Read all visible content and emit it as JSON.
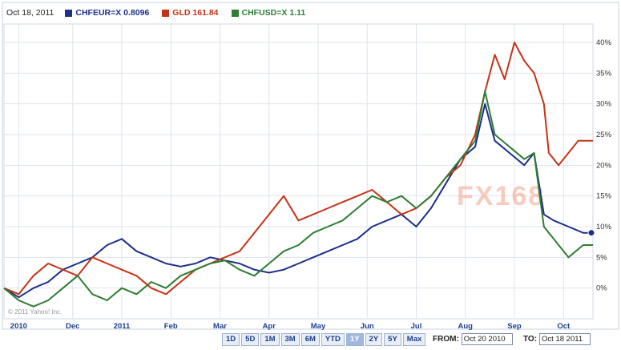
{
  "legend": {
    "date": "Oct 18, 2011",
    "items": [
      {
        "label": "CHFEUR=X",
        "value": "0.8096",
        "color": "#1c2f8a"
      },
      {
        "label": "GLD",
        "value": "161.84",
        "color": "#c63218"
      },
      {
        "label": "CHFUSD=X",
        "value": "1.11",
        "color": "#2e7d32"
      }
    ]
  },
  "watermark": {
    "text": "FX168",
    "copyright": "© 2011 Yahoo! Inc."
  },
  "range_buttons": [
    {
      "label": "1D",
      "active": false
    },
    {
      "label": "5D",
      "active": false
    },
    {
      "label": "1M",
      "active": false
    },
    {
      "label": "3M",
      "active": false
    },
    {
      "label": "6M",
      "active": false
    },
    {
      "label": "YTD",
      "active": false
    },
    {
      "label": "1Y",
      "active": true
    },
    {
      "label": "2Y",
      "active": false
    },
    {
      "label": "5Y",
      "active": false
    },
    {
      "label": "Max",
      "active": false
    }
  ],
  "from": {
    "label": "FROM:",
    "value": "Oct 20 2010"
  },
  "to": {
    "label": "TO:",
    "value": "Oct 18 2011"
  },
  "chart_data": {
    "type": "line",
    "x_tick_labels": [
      "2010",
      "Dec",
      "2011",
      "Feb",
      "Mar",
      "Apr",
      "May",
      "Jun",
      "Jul",
      "Aug",
      "Sep",
      "Oct"
    ],
    "x_tick_months": [
      0.3,
      1.4,
      2.4,
      3.4,
      4.4,
      5.4,
      6.4,
      7.4,
      8.4,
      9.4,
      10.4,
      11.4
    ],
    "x_range_months": [
      0,
      12
    ],
    "y_tick_labels": [
      "0%",
      "5%",
      "10%",
      "15%",
      "20%",
      "25%",
      "30%",
      "35%",
      "40%"
    ],
    "y_ticks": [
      0,
      5,
      10,
      15,
      20,
      25,
      30,
      35,
      40
    ],
    "ylim": [
      -5,
      43
    ],
    "y_axis_side": "right",
    "grid": true,
    "series": [
      {
        "name": "CHFEUR=X",
        "color": "#1c2f8a",
        "points": [
          [
            0,
            0
          ],
          [
            0.3,
            -1.5
          ],
          [
            0.6,
            0
          ],
          [
            0.9,
            1
          ],
          [
            1.2,
            3
          ],
          [
            1.5,
            4
          ],
          [
            1.8,
            5
          ],
          [
            2.1,
            7
          ],
          [
            2.4,
            8
          ],
          [
            2.7,
            6
          ],
          [
            3.0,
            5
          ],
          [
            3.3,
            4
          ],
          [
            3.6,
            3.5
          ],
          [
            3.9,
            4
          ],
          [
            4.2,
            5
          ],
          [
            4.5,
            4.5
          ],
          [
            4.8,
            4
          ],
          [
            5.1,
            3
          ],
          [
            5.4,
            2.5
          ],
          [
            5.7,
            3
          ],
          [
            6.0,
            4
          ],
          [
            6.3,
            5
          ],
          [
            6.6,
            6
          ],
          [
            6.9,
            7
          ],
          [
            7.2,
            8
          ],
          [
            7.5,
            10
          ],
          [
            7.8,
            11
          ],
          [
            8.1,
            12
          ],
          [
            8.4,
            10
          ],
          [
            8.7,
            13
          ],
          [
            9.0,
            17
          ],
          [
            9.3,
            21
          ],
          [
            9.6,
            23
          ],
          [
            9.8,
            30
          ],
          [
            10.0,
            24
          ],
          [
            10.3,
            22
          ],
          [
            10.6,
            20
          ],
          [
            10.8,
            22
          ],
          [
            11.0,
            12
          ],
          [
            11.2,
            11
          ],
          [
            11.5,
            10
          ],
          [
            11.8,
            9
          ],
          [
            12.0,
            9
          ]
        ]
      },
      {
        "name": "GLD",
        "color": "#c63218",
        "points": [
          [
            0,
            0
          ],
          [
            0.3,
            -1
          ],
          [
            0.6,
            2
          ],
          [
            0.9,
            4
          ],
          [
            1.2,
            3
          ],
          [
            1.5,
            2
          ],
          [
            1.8,
            5
          ],
          [
            2.1,
            4
          ],
          [
            2.4,
            3
          ],
          [
            2.7,
            2
          ],
          [
            3.0,
            0
          ],
          [
            3.3,
            -1
          ],
          [
            3.6,
            1
          ],
          [
            3.9,
            3
          ],
          [
            4.2,
            4
          ],
          [
            4.5,
            5
          ],
          [
            4.8,
            6
          ],
          [
            5.1,
            9
          ],
          [
            5.4,
            12
          ],
          [
            5.7,
            15
          ],
          [
            6.0,
            11
          ],
          [
            6.3,
            12
          ],
          [
            6.6,
            13
          ],
          [
            6.9,
            14
          ],
          [
            7.2,
            15
          ],
          [
            7.5,
            16
          ],
          [
            7.8,
            14
          ],
          [
            8.1,
            12
          ],
          [
            8.4,
            13
          ],
          [
            8.7,
            15
          ],
          [
            9.0,
            18
          ],
          [
            9.3,
            20
          ],
          [
            9.6,
            25
          ],
          [
            9.8,
            32
          ],
          [
            10.0,
            38
          ],
          [
            10.2,
            34
          ],
          [
            10.4,
            40
          ],
          [
            10.6,
            37
          ],
          [
            10.8,
            35
          ],
          [
            11.0,
            30
          ],
          [
            11.1,
            22
          ],
          [
            11.3,
            20
          ],
          [
            11.5,
            22
          ],
          [
            11.7,
            24
          ],
          [
            12.0,
            24
          ]
        ]
      },
      {
        "name": "CHFUSD=X",
        "color": "#2e7d32",
        "points": [
          [
            0,
            0
          ],
          [
            0.3,
            -2
          ],
          [
            0.6,
            -3
          ],
          [
            0.9,
            -2
          ],
          [
            1.2,
            0
          ],
          [
            1.5,
            2
          ],
          [
            1.8,
            -1
          ],
          [
            2.1,
            -2
          ],
          [
            2.4,
            0
          ],
          [
            2.7,
            -1
          ],
          [
            3.0,
            1
          ],
          [
            3.3,
            0
          ],
          [
            3.6,
            2
          ],
          [
            3.9,
            3
          ],
          [
            4.2,
            4
          ],
          [
            4.5,
            4.5
          ],
          [
            4.8,
            3
          ],
          [
            5.1,
            2
          ],
          [
            5.4,
            4
          ],
          [
            5.7,
            6
          ],
          [
            6.0,
            7
          ],
          [
            6.3,
            9
          ],
          [
            6.6,
            10
          ],
          [
            6.9,
            11
          ],
          [
            7.2,
            13
          ],
          [
            7.5,
            15
          ],
          [
            7.8,
            14
          ],
          [
            8.1,
            15
          ],
          [
            8.4,
            13
          ],
          [
            8.7,
            15
          ],
          [
            9.0,
            18
          ],
          [
            9.3,
            21
          ],
          [
            9.6,
            24
          ],
          [
            9.8,
            32
          ],
          [
            10.0,
            25
          ],
          [
            10.3,
            23
          ],
          [
            10.6,
            21
          ],
          [
            10.8,
            22
          ],
          [
            11.0,
            10
          ],
          [
            11.2,
            8
          ],
          [
            11.5,
            5
          ],
          [
            11.8,
            7
          ],
          [
            12.0,
            7
          ]
        ]
      }
    ]
  }
}
